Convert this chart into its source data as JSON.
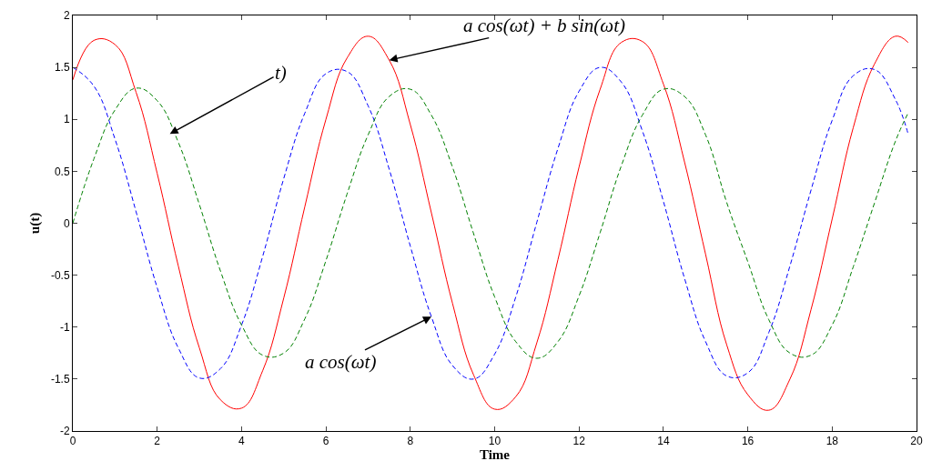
{
  "chart_data": {
    "type": "line",
    "xlabel": "Time",
    "ylabel": "u(t)",
    "x": [
      0,
      0.5,
      1,
      1.5,
      2,
      2.5,
      3,
      3.5,
      4,
      4.5,
      5,
      5.5,
      6,
      6.5,
      7,
      7.5,
      8,
      8.5,
      9,
      9.5,
      10,
      10.5,
      11,
      11.5,
      12,
      12.5,
      13,
      13.5,
      14,
      14.5,
      15,
      15.5,
      16,
      16.5,
      17,
      17.5,
      18,
      18.5,
      19,
      19.5,
      19.8
    ],
    "series": [
      {
        "color": "#ff0000",
        "line_style": "solid",
        "values": [
          1.38,
          1.76,
          1.72,
          1.26,
          0.48,
          -0.41,
          -1.2,
          -1.7,
          -1.78,
          -1.42,
          -0.72,
          0.16,
          1.0,
          1.59,
          1.8,
          1.57,
          0.95,
          0.1,
          -0.77,
          -1.46,
          -1.79,
          -1.67,
          -1.15,
          -0.35,
          0.54,
          1.29,
          1.74,
          1.75,
          1.34,
          0.59,
          -0.3,
          -1.17,
          -1.65,
          -1.8,
          -1.5,
          -0.83,
          0.04,
          0.92,
          1.53,
          1.8,
          1.74
        ]
      },
      {
        "color": "#0000ff",
        "line_style": "dashed",
        "values": [
          1.5,
          1.32,
          0.81,
          0.11,
          -0.62,
          -1.2,
          -1.49,
          -1.4,
          -0.98,
          -0.32,
          0.43,
          1.06,
          1.44,
          1.46,
          1.13,
          0.52,
          -0.22,
          -0.9,
          -1.37,
          -1.5,
          -1.26,
          -0.71,
          0.01,
          0.72,
          1.27,
          1.5,
          1.36,
          0.89,
          0.21,
          -0.53,
          -1.14,
          -1.47,
          -1.44,
          -1.05,
          -0.41,
          0.32,
          0.99,
          1.42,
          1.48,
          1.19,
          0.86
        ]
      },
      {
        "color": "#008000",
        "line_style": "dashed",
        "values": [
          0,
          0.62,
          1.09,
          1.3,
          1.18,
          0.78,
          0.18,
          -0.46,
          -0.98,
          -1.27,
          -1.25,
          -0.92,
          -0.36,
          0.28,
          0.85,
          1.22,
          1.29,
          1.04,
          0.54,
          -0.1,
          -0.71,
          -1.14,
          -1.3,
          -1.14,
          -0.7,
          -0.09,
          0.55,
          1.04,
          1.29,
          1.22,
          0.85,
          0.2,
          -0.37,
          -0.93,
          -1.25,
          -1.27,
          -0.98,
          -0.42,
          0.19,
          0.79,
          1.06
        ]
      }
    ],
    "xlim": [
      0,
      20
    ],
    "xticks": [
      0,
      2,
      4,
      6,
      8,
      10,
      12,
      14,
      16,
      18,
      20
    ],
    "ylim": [
      -2,
      2
    ],
    "yticks": [
      -2,
      -1.5,
      -1,
      -0.5,
      0,
      0.5,
      1,
      1.5,
      2
    ],
    "annotations": [
      {
        "text": "a cos(ωt) + b sin(ωt)",
        "x": 7.5,
        "y": 1.57
      },
      {
        "text": "t)",
        "x": 2.3,
        "y": 0.86
      },
      {
        "text": "a cos(ωt)",
        "x": 8.5,
        "y": -0.9
      }
    ]
  }
}
